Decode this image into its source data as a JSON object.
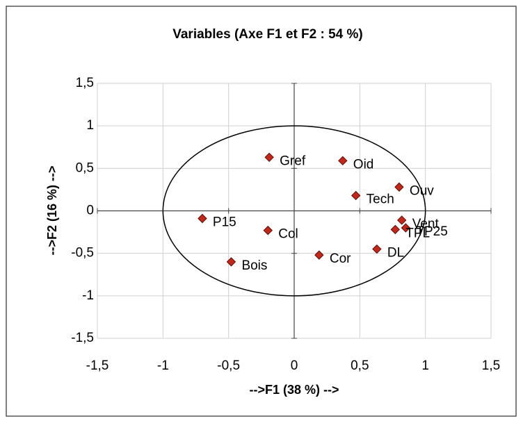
{
  "chart_data": {
    "type": "scatter",
    "title": "Variables (Axe F1 et F2 : 54 %)",
    "x_label": "-->F1 (38 %) -->",
    "y_label": "-->F2 (16 %) -->",
    "labels": [
      "Gref",
      "Oid",
      "Ouv",
      "Tech",
      "Vent",
      "TP25",
      "TPL",
      "DL",
      "Cor",
      "Col",
      "P15",
      "Bois"
    ],
    "x": [
      -0.19,
      0.37,
      0.8,
      0.47,
      0.82,
      0.85,
      0.77,
      0.63,
      0.19,
      -0.2,
      -0.7,
      -0.48
    ],
    "values": [
      0.63,
      0.59,
      0.28,
      0.18,
      -0.11,
      -0.2,
      -0.22,
      -0.45,
      -0.52,
      -0.23,
      -0.09,
      -0.6
    ],
    "color": "#c0281c",
    "circle_radius": 1,
    "xlim": [
      -1.5,
      1.5
    ],
    "ylim": [
      -1.5,
      1.5
    ],
    "xticks": [
      {
        "value": -1.5,
        "label": "-1,5"
      },
      -1,
      {
        "value": -0.5,
        "label": "-0,5"
      },
      0,
      {
        "value": 0.5,
        "label": "0,5"
      },
      1,
      {
        "value": 1.5,
        "label": "1,5"
      }
    ],
    "yticks": [
      {
        "value": -1.5,
        "label": "-1,5"
      },
      -1,
      {
        "value": -0.5,
        "label": "-0,5"
      },
      0,
      {
        "value": 0.5,
        "label": "0,5"
      },
      1,
      {
        "value": 1.5,
        "label": "1,5"
      }
    ],
    "grid": true
  }
}
